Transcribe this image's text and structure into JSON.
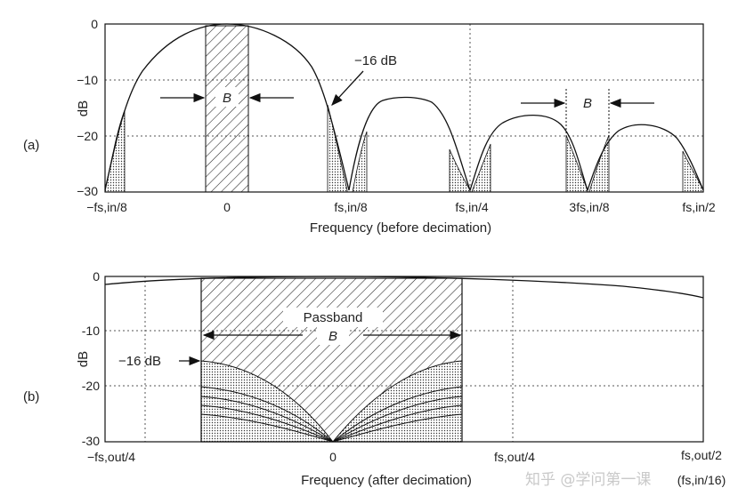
{
  "panel_a": {
    "label": "(a)",
    "ylabel": "dB",
    "y_ticks": [
      "0",
      "−10",
      "−20",
      "−30"
    ],
    "x_ticks": [
      "−fs,in/8",
      "0",
      "fs,in/8",
      "fs,in/4",
      "3fs,in/8",
      "fs,in/2"
    ],
    "xlabel": "Frequency (before decimation)",
    "annot_16db": "−16 dB",
    "band_label": "B",
    "band_label_right": "B"
  },
  "panel_b": {
    "label": "(b)",
    "ylabel": "dB",
    "y_ticks": [
      "0",
      "-10",
      "-20",
      "-30"
    ],
    "x_ticks": [
      "−fs,out/4",
      "0",
      "fs,out/4",
      "fs,out/2"
    ],
    "x_tick_extra": "(fs,in/16)",
    "xlabel": "Frequency (after decimation)",
    "passband": "Passband",
    "band_label": "B",
    "annot_16db": "−16 dB"
  },
  "watermark": "知乎 @学问第一课"
}
